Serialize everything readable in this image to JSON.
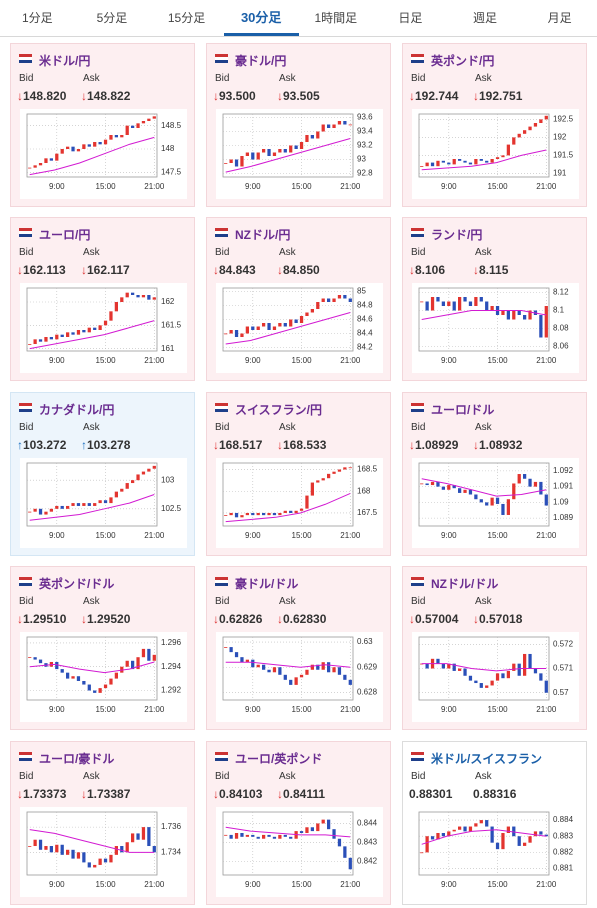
{
  "tabs": {
    "items": [
      "1分足",
      "5分足",
      "15分足",
      "30分足",
      "1時間足",
      "日足",
      "週足",
      "月足"
    ],
    "active": 3
  },
  "labels": {
    "bid": "Bid",
    "ask": "Ask"
  },
  "chart_style": {
    "type": "candlestick",
    "up_color": "#e3342f",
    "down_color": "#2a4fb8",
    "ma_color": "#d21ad2",
    "grid": true,
    "xlim": [
      -0.5,
      23.5
    ],
    "xticks": [
      {
        "value": 5,
        "label": "9:00"
      },
      {
        "value": 14,
        "label": "15:00"
      },
      {
        "value": 23,
        "label": "21:00"
      }
    ]
  },
  "cards": [
    {
      "name": "米ドル/円",
      "trend": "down",
      "arrow": "↓",
      "bid": "148.820",
      "ask": "148.822",
      "chart": {
        "ylim": [
          147.4,
          148.75
        ],
        "yticks": [
          147.5,
          148,
          148.5
        ],
        "values": [
          147.6,
          147.65,
          147.7,
          147.8,
          147.75,
          147.9,
          148.0,
          148.05,
          147.95,
          148.0,
          148.1,
          148.05,
          148.15,
          148.1,
          148.2,
          148.3,
          148.25,
          148.3,
          148.5,
          148.45,
          148.55,
          148.6,
          148.65,
          148.7
        ],
        "ma": [
          147.45,
          147.55,
          147.7,
          147.9,
          148.1,
          148.25
        ]
      }
    },
    {
      "name": "豪ドル/円",
      "trend": "down",
      "arrow": "↓",
      "bid": "93.500",
      "ask": "93.505",
      "chart": {
        "ylim": [
          92.75,
          93.65
        ],
        "yticks": [
          92.8,
          93,
          93.2,
          93.4,
          93.6
        ],
        "values": [
          92.95,
          93.0,
          92.9,
          93.05,
          93.1,
          93.0,
          93.1,
          93.15,
          93.05,
          93.1,
          93.15,
          93.1,
          93.2,
          93.15,
          93.25,
          93.35,
          93.3,
          93.4,
          93.5,
          93.45,
          93.5,
          93.55,
          93.5,
          93.5
        ],
        "ma": [
          92.82,
          92.9,
          93.0,
          93.1,
          93.2,
          93.3
        ]
      }
    },
    {
      "name": "英ポンド/円",
      "trend": "down",
      "arrow": "↓",
      "bid": "192.744",
      "ask": "192.751",
      "chart": {
        "ylim": [
          190.9,
          192.65
        ],
        "yticks": [
          191,
          191.5,
          192,
          192.5
        ],
        "values": [
          191.2,
          191.3,
          191.2,
          191.35,
          191.3,
          191.25,
          191.4,
          191.35,
          191.3,
          191.25,
          191.4,
          191.35,
          191.3,
          191.4,
          191.45,
          191.5,
          191.8,
          192.0,
          192.1,
          192.2,
          192.3,
          192.4,
          192.5,
          192.6
        ],
        "ma": [
          191.1,
          191.15,
          191.2,
          191.3,
          191.5,
          191.65
        ]
      }
    },
    {
      "name": "ユーロ/円",
      "trend": "down",
      "arrow": "↓",
      "bid": "162.113",
      "ask": "162.117",
      "chart": {
        "ylim": [
          160.95,
          162.3
        ],
        "yticks": [
          161,
          161.5,
          162
        ],
        "values": [
          161.1,
          161.2,
          161.15,
          161.25,
          161.2,
          161.3,
          161.25,
          161.35,
          161.3,
          161.4,
          161.35,
          161.45,
          161.4,
          161.5,
          161.6,
          161.8,
          162.0,
          162.1,
          162.2,
          162.15,
          162.1,
          162.15,
          162.05,
          162.1
        ],
        "ma": [
          161.0,
          161.1,
          161.2,
          161.3,
          161.45,
          161.6
        ]
      }
    },
    {
      "name": "NZドル/円",
      "trend": "down",
      "arrow": "↓",
      "bid": "84.843",
      "ask": "84.850",
      "chart": {
        "ylim": [
          84.15,
          85.05
        ],
        "yticks": [
          84.2,
          84.4,
          84.6,
          84.8,
          85
        ],
        "values": [
          84.4,
          84.45,
          84.35,
          84.4,
          84.5,
          84.45,
          84.5,
          84.55,
          84.45,
          84.5,
          84.55,
          84.5,
          84.6,
          84.55,
          84.65,
          84.7,
          84.75,
          84.85,
          84.9,
          84.85,
          84.9,
          84.95,
          84.9,
          84.85
        ],
        "ma": [
          84.25,
          84.3,
          84.4,
          84.5,
          84.6,
          84.7
        ]
      }
    },
    {
      "name": "ランド/円",
      "trend": "down",
      "arrow": "↓",
      "bid": "8.106",
      "ask": "8.115",
      "chart": {
        "ylim": [
          8.055,
          8.125
        ],
        "yticks": [
          8.06,
          8.08,
          8.1,
          8.12
        ],
        "values": [
          8.11,
          8.1,
          8.115,
          8.11,
          8.105,
          8.11,
          8.1,
          8.115,
          8.11,
          8.105,
          8.115,
          8.11,
          8.1,
          8.105,
          8.095,
          8.1,
          8.09,
          8.1,
          8.095,
          8.09,
          8.1,
          8.095,
          8.07,
          8.105
        ],
        "ma": [
          8.09,
          8.095,
          8.1,
          8.1,
          8.1,
          8.095
        ]
      }
    },
    {
      "name": "カナダドル/円",
      "trend": "up",
      "arrow": "↑",
      "bid": "103.272",
      "ask": "103.278",
      "chart": {
        "ylim": [
          102.2,
          103.3
        ],
        "yticks": [
          102.5,
          103
        ],
        "values": [
          102.45,
          102.5,
          102.4,
          102.45,
          102.5,
          102.55,
          102.5,
          102.55,
          102.6,
          102.55,
          102.6,
          102.55,
          102.6,
          102.65,
          102.6,
          102.7,
          102.8,
          102.85,
          102.95,
          103.0,
          103.1,
          103.15,
          103.2,
          103.25
        ],
        "ma": [
          102.3,
          102.35,
          102.4,
          102.5,
          102.6,
          102.75
        ]
      }
    },
    {
      "name": "スイスフラン/円",
      "trend": "down",
      "arrow": "↓",
      "bid": "168.517",
      "ask": "168.533",
      "chart": {
        "ylim": [
          167.2,
          168.65
        ],
        "yticks": [
          167.5,
          168,
          168.5
        ],
        "values": [
          167.45,
          167.5,
          167.4,
          167.45,
          167.5,
          167.45,
          167.5,
          167.45,
          167.5,
          167.45,
          167.5,
          167.55,
          167.5,
          167.55,
          167.6,
          167.9,
          168.2,
          168.25,
          168.3,
          168.4,
          168.45,
          168.5,
          168.55,
          168.55
        ],
        "ma": [
          167.3,
          167.35,
          167.4,
          167.5,
          167.7,
          167.95
        ]
      }
    },
    {
      "name": "ユーロ/ドル",
      "trend": "down",
      "arrow": "↓",
      "bid": "1.08929",
      "ask": "1.08932",
      "chart": {
        "ylim": [
          1.0885,
          1.0925
        ],
        "yticks": [
          1.089,
          1.09,
          1.091,
          1.092
        ],
        "values": [
          1.0912,
          1.0911,
          1.0913,
          1.091,
          1.0908,
          1.0911,
          1.0909,
          1.0906,
          1.0908,
          1.0905,
          1.0902,
          1.09,
          1.0898,
          1.0903,
          1.0899,
          1.0892,
          1.0902,
          1.0912,
          1.0918,
          1.0915,
          1.091,
          1.0913,
          1.0905,
          1.0898
        ],
        "ma": [
          1.0915,
          1.0912,
          1.0908,
          1.0904,
          1.0905,
          1.0908
        ]
      }
    },
    {
      "name": "英ポンド/ドル",
      "trend": "down",
      "arrow": "↓",
      "bid": "1.29510",
      "ask": "1.29520",
      "chart": {
        "ylim": [
          1.2912,
          1.2965
        ],
        "yticks": [
          1.292,
          1.294,
          1.296
        ],
        "values": [
          1.2948,
          1.2946,
          1.2943,
          1.294,
          1.2944,
          1.2938,
          1.2935,
          1.293,
          1.2932,
          1.2928,
          1.2925,
          1.292,
          1.2918,
          1.2922,
          1.2925,
          1.293,
          1.2935,
          1.294,
          1.2945,
          1.2938,
          1.2948,
          1.2955,
          1.2945,
          1.295
        ],
        "ma": [
          1.294,
          1.2942,
          1.2938,
          1.2935,
          1.2938,
          1.2944
        ]
      }
    },
    {
      "name": "豪ドル/ドル",
      "trend": "down",
      "arrow": "↓",
      "bid": "0.62826",
      "ask": "0.62830",
      "chart": {
        "ylim": [
          0.6277,
          0.6302
        ],
        "yticks": [
          0.628,
          0.629,
          0.63
        ],
        "values": [
          0.6298,
          0.6296,
          0.6294,
          0.6292,
          0.6293,
          0.629,
          0.6291,
          0.6289,
          0.6288,
          0.629,
          0.6287,
          0.6285,
          0.6283,
          0.6286,
          0.6287,
          0.6289,
          0.6291,
          0.6289,
          0.6292,
          0.6288,
          0.629,
          0.6287,
          0.6285,
          0.6283
        ],
        "ma": [
          0.6292,
          0.6292,
          0.6291,
          0.629,
          0.6291,
          0.629
        ]
      }
    },
    {
      "name": "NZドル/ドル",
      "trend": "down",
      "arrow": "↓",
      "bid": "0.57004",
      "ask": "0.57018",
      "chart": {
        "ylim": [
          0.5697,
          0.5723
        ],
        "yticks": [
          0.57,
          0.571,
          0.572
        ],
        "values": [
          0.5712,
          0.571,
          0.5714,
          0.5712,
          0.571,
          0.5712,
          0.5709,
          0.571,
          0.5707,
          0.5705,
          0.5704,
          0.5702,
          0.5703,
          0.5705,
          0.5708,
          0.5706,
          0.5709,
          0.5712,
          0.5707,
          0.5716,
          0.571,
          0.5708,
          0.5705,
          0.57
        ],
        "ma": [
          0.5712,
          0.5712,
          0.571,
          0.5709,
          0.571,
          0.571
        ]
      }
    },
    {
      "name": "ユーロ/豪ドル",
      "trend": "down",
      "arrow": "↓",
      "bid": "1.73373",
      "ask": "1.73387",
      "chart": {
        "ylim": [
          1.7322,
          1.7372
        ],
        "yticks": [
          1.734,
          1.736
        ],
        "values": [
          1.7345,
          1.735,
          1.7342,
          1.7345,
          1.734,
          1.7346,
          1.7338,
          1.7342,
          1.7335,
          1.734,
          1.7332,
          1.7328,
          1.733,
          1.7335,
          1.7332,
          1.7338,
          1.7345,
          1.734,
          1.7348,
          1.7355,
          1.735,
          1.736,
          1.7345,
          1.734
        ],
        "ma": [
          1.7358,
          1.7355,
          1.735,
          1.7345,
          1.734,
          1.734
        ]
      }
    },
    {
      "name": "ユーロ/英ポンド",
      "trend": "down",
      "arrow": "↓",
      "bid": "0.84103",
      "ask": "0.84111",
      "chart": {
        "ylim": [
          0.8413,
          0.8446
        ],
        "yticks": [
          0.842,
          0.843,
          0.844
        ],
        "values": [
          0.8434,
          0.8432,
          0.8435,
          0.8433,
          0.8434,
          0.8433,
          0.8432,
          0.8434,
          0.8433,
          0.8432,
          0.8434,
          0.8433,
          0.8432,
          0.8436,
          0.8435,
          0.8438,
          0.8436,
          0.844,
          0.8442,
          0.8437,
          0.8432,
          0.8428,
          0.8422,
          0.8416
        ],
        "ma": [
          0.8438,
          0.8436,
          0.8435,
          0.8434,
          0.8434,
          0.8433
        ]
      }
    },
    {
      "name": "米ドル/スイスフラン",
      "trend": "flat",
      "bid": "0.88301",
      "ask": "0.88316",
      "chart": {
        "ylim": [
          0.8806,
          0.8845
        ],
        "yticks": [
          0.881,
          0.882,
          0.883,
          0.884
        ],
        "values": [
          0.882,
          0.883,
          0.8828,
          0.8832,
          0.883,
          0.8833,
          0.8834,
          0.8836,
          0.8833,
          0.8836,
          0.8838,
          0.884,
          0.8836,
          0.8826,
          0.8822,
          0.8832,
          0.8836,
          0.883,
          0.8824,
          0.8826,
          0.883,
          0.8833,
          0.8831,
          0.883
        ],
        "ma": [
          0.8825,
          0.883,
          0.8833,
          0.8834,
          0.8832,
          0.883
        ]
      }
    }
  ]
}
